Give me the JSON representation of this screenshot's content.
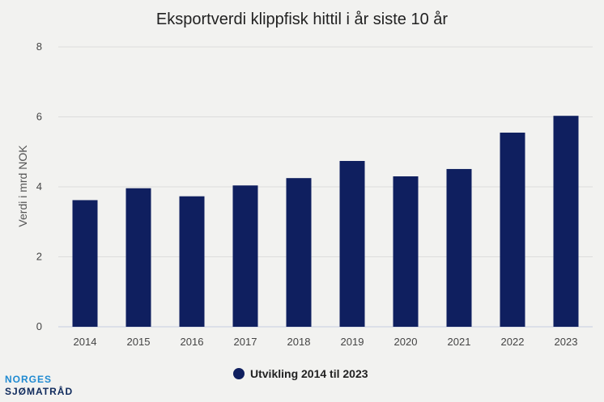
{
  "chart_data": {
    "type": "bar",
    "title": "Eksportverdi klippfisk hittil i år siste 10 år",
    "ylabel": "Verdi i mrd NOK",
    "xlabel": "",
    "categories": [
      "2014",
      "2015",
      "2016",
      "2017",
      "2018",
      "2019",
      "2020",
      "2021",
      "2022",
      "2023"
    ],
    "series": [
      {
        "name": "Utvikling 2014 til 2023",
        "values": [
          3.62,
          3.96,
          3.73,
          4.04,
          4.25,
          4.74,
          4.3,
          4.51,
          5.55,
          6.03
        ]
      }
    ],
    "ylim": [
      0,
      8
    ],
    "yticks": [
      0,
      2,
      4,
      6,
      8
    ],
    "grid": true,
    "legend_position": "bottom",
    "bar_color": "#0f1f5f"
  },
  "logo": {
    "line1": "NORGES",
    "line2": "SJØMATRÅD"
  }
}
